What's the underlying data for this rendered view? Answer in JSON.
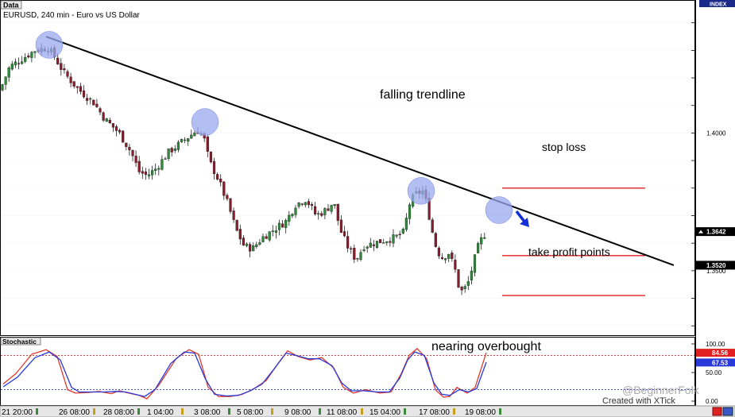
{
  "header": {
    "tab_label": "Data",
    "symbol_line": "EURUSD, 240 min - Euro vs US Dollar",
    "index_badge": "INDEX"
  },
  "annotations": {
    "trendline_label": "falling trendline",
    "stop_loss_label": "stop loss",
    "take_profit_label": "take profit points",
    "overbought_label": "nearing overbought"
  },
  "indicator": {
    "tab_label": "Stochastic"
  },
  "footer": {
    "watermark": "@BeginnerFolk",
    "credit": "Created with XTick"
  },
  "colors": {
    "bull_candle": "#2e8b3a",
    "bear_candle": "#8b1a2a",
    "trendline": "#000000",
    "level_lines": "#e02020",
    "circle_fill": "#9aa8ee",
    "arrow": "#1330d8",
    "stoch_k": "#e03a2a",
    "stoch_d": "#2a3ad8",
    "price_label_bg": "#000000",
    "pct_k_bg": "#e02020",
    "pct_d_bg": "#2a3ad8"
  },
  "chart_data": [
    {
      "type": "candlestick",
      "title": "EURUSD, 240 min - Euro vs US Dollar",
      "ylim": [
        1.3266,
        1.4477
      ],
      "y_ticks": [
        {
          "value": 1.4,
          "label": "1.4000"
        },
        {
          "value": 1.35,
          "label": "1.3500"
        }
      ],
      "price_labels": [
        {
          "value": 1.3642,
          "label": "1.3642",
          "style": "current"
        },
        {
          "value": 1.352,
          "label": "1.3520",
          "style": "level"
        }
      ],
      "x_tick_labels": [
        "21 20:00",
        "26 08:00",
        "28 08:00",
        "1 04:00",
        "3 08:00",
        "5 08:00",
        "9 08:00",
        "11 08:00",
        "15 04:00",
        "17 08:00",
        "19 08:00"
      ],
      "close_path": [
        [
          0,
          1.4155
        ],
        [
          12,
          1.424
        ],
        [
          28,
          1.427
        ],
        [
          44,
          1.43
        ],
        [
          60,
          1.431
        ],
        [
          68,
          1.428
        ],
        [
          80,
          1.422
        ],
        [
          98,
          1.416
        ],
        [
          118,
          1.411
        ],
        [
          132,
          1.405
        ],
        [
          150,
          1.4
        ],
        [
          165,
          1.393
        ],
        [
          175,
          1.386
        ],
        [
          185,
          1.3845
        ],
        [
          196,
          1.387
        ],
        [
          212,
          1.393
        ],
        [
          230,
          1.397
        ],
        [
          248,
          1.401
        ],
        [
          256,
          1.399
        ],
        [
          263,
          1.39
        ],
        [
          275,
          1.383
        ],
        [
          287,
          1.374
        ],
        [
          297,
          1.365
        ],
        [
          307,
          1.359
        ],
        [
          318,
          1.358
        ],
        [
          330,
          1.362
        ],
        [
          345,
          1.365
        ],
        [
          360,
          1.368
        ],
        [
          372,
          1.374
        ],
        [
          385,
          1.376
        ],
        [
          398,
          1.37
        ],
        [
          410,
          1.372
        ],
        [
          420,
          1.375
        ],
        [
          428,
          1.365
        ],
        [
          437,
          1.359
        ],
        [
          448,
          1.354
        ],
        [
          458,
          1.359
        ],
        [
          470,
          1.36
        ],
        [
          483,
          1.361
        ],
        [
          497,
          1.362
        ],
        [
          508,
          1.364
        ],
        [
          516,
          1.375
        ],
        [
          524,
          1.378
        ],
        [
          533,
          1.379
        ],
        [
          540,
          1.37
        ],
        [
          547,
          1.36
        ],
        [
          555,
          1.3545
        ],
        [
          565,
          1.3565
        ],
        [
          573,
          1.35
        ],
        [
          579,
          1.342
        ],
        [
          588,
          1.3445
        ],
        [
          596,
          1.353
        ],
        [
          603,
          1.36
        ],
        [
          612,
          1.3642
        ]
      ],
      "trendline": {
        "from": [
          58,
          1.435
        ],
        "to": [
          848,
          1.352
        ]
      },
      "stop_loss_level": 1.38,
      "take_profit_levels": [
        1.3555,
        1.341
      ],
      "touch_points": [
        [
          62,
          1.432
        ],
        [
          258,
          1.404
        ],
        [
          530,
          1.379
        ],
        [
          628,
          1.372
        ]
      ]
    },
    {
      "type": "line",
      "title": "Stochastic",
      "ylim": [
        0,
        100
      ],
      "y_ticks": [
        {
          "value": 100,
          "label": "100.00"
        },
        {
          "value": 50,
          "label": "50.00"
        },
        {
          "value": 0,
          "label": "0.00"
        }
      ],
      "levels": [
        80,
        20
      ],
      "value_labels": [
        {
          "value": 84.56,
          "label": "84.56",
          "series": "%K"
        },
        {
          "value": 67.53,
          "label": "67.53",
          "series": "%D"
        }
      ],
      "series": [
        {
          "id": "k",
          "points": [
            [
              4,
              30
            ],
            [
              20,
              48
            ],
            [
              40,
              82
            ],
            [
              58,
              90
            ],
            [
              72,
              78
            ],
            [
              85,
              20
            ],
            [
              95,
              14
            ],
            [
              110,
              15
            ],
            [
              125,
              17
            ],
            [
              140,
              13
            ],
            [
              150,
              18
            ],
            [
              162,
              14
            ],
            [
              175,
              10
            ],
            [
              185,
              4
            ],
            [
              200,
              28
            ],
            [
              222,
              75
            ],
            [
              238,
              90
            ],
            [
              250,
              82
            ],
            [
              262,
              24
            ],
            [
              275,
              8
            ],
            [
              290,
              8
            ],
            [
              305,
              12
            ],
            [
              320,
              22
            ],
            [
              335,
              36
            ],
            [
              350,
              66
            ],
            [
              362,
              88
            ],
            [
              375,
              78
            ],
            [
              390,
              72
            ],
            [
              405,
              76
            ],
            [
              420,
              58
            ],
            [
              432,
              24
            ],
            [
              445,
              14
            ],
            [
              460,
              20
            ],
            [
              478,
              14
            ],
            [
              492,
              16
            ],
            [
              505,
              48
            ],
            [
              515,
              80
            ],
            [
              525,
              92
            ],
            [
              537,
              74
            ],
            [
              548,
              20
            ],
            [
              558,
              7
            ],
            [
              566,
              8
            ],
            [
              575,
              24
            ],
            [
              588,
              14
            ],
            [
              598,
              24
            ],
            [
              612,
              85
            ]
          ]
        },
        {
          "id": "d",
          "points": [
            [
              4,
              25
            ],
            [
              22,
              42
            ],
            [
              44,
              76
            ],
            [
              62,
              86
            ],
            [
              76,
              72
            ],
            [
              90,
              24
            ],
            [
              100,
              16
            ],
            [
              115,
              16
            ],
            [
              130,
              16
            ],
            [
              145,
              17
            ],
            [
              158,
              16
            ],
            [
              170,
              12
            ],
            [
              182,
              8
            ],
            [
              195,
              20
            ],
            [
              215,
              66
            ],
            [
              232,
              86
            ],
            [
              245,
              84
            ],
            [
              258,
              40
            ],
            [
              270,
              12
            ],
            [
              285,
              9
            ],
            [
              300,
              10
            ],
            [
              315,
              18
            ],
            [
              330,
              30
            ],
            [
              346,
              58
            ],
            [
              360,
              84
            ],
            [
              372,
              80
            ],
            [
              388,
              74
            ],
            [
              402,
              74
            ],
            [
              418,
              62
            ],
            [
              430,
              32
            ],
            [
              442,
              18
            ],
            [
              458,
              18
            ],
            [
              475,
              16
            ],
            [
              490,
              16
            ],
            [
              503,
              40
            ],
            [
              513,
              72
            ],
            [
              522,
              86
            ],
            [
              534,
              80
            ],
            [
              546,
              32
            ],
            [
              556,
              12
            ],
            [
              566,
              10
            ],
            [
              578,
              20
            ],
            [
              590,
              16
            ],
            [
              600,
              22
            ],
            [
              612,
              68
            ]
          ]
        }
      ]
    }
  ]
}
